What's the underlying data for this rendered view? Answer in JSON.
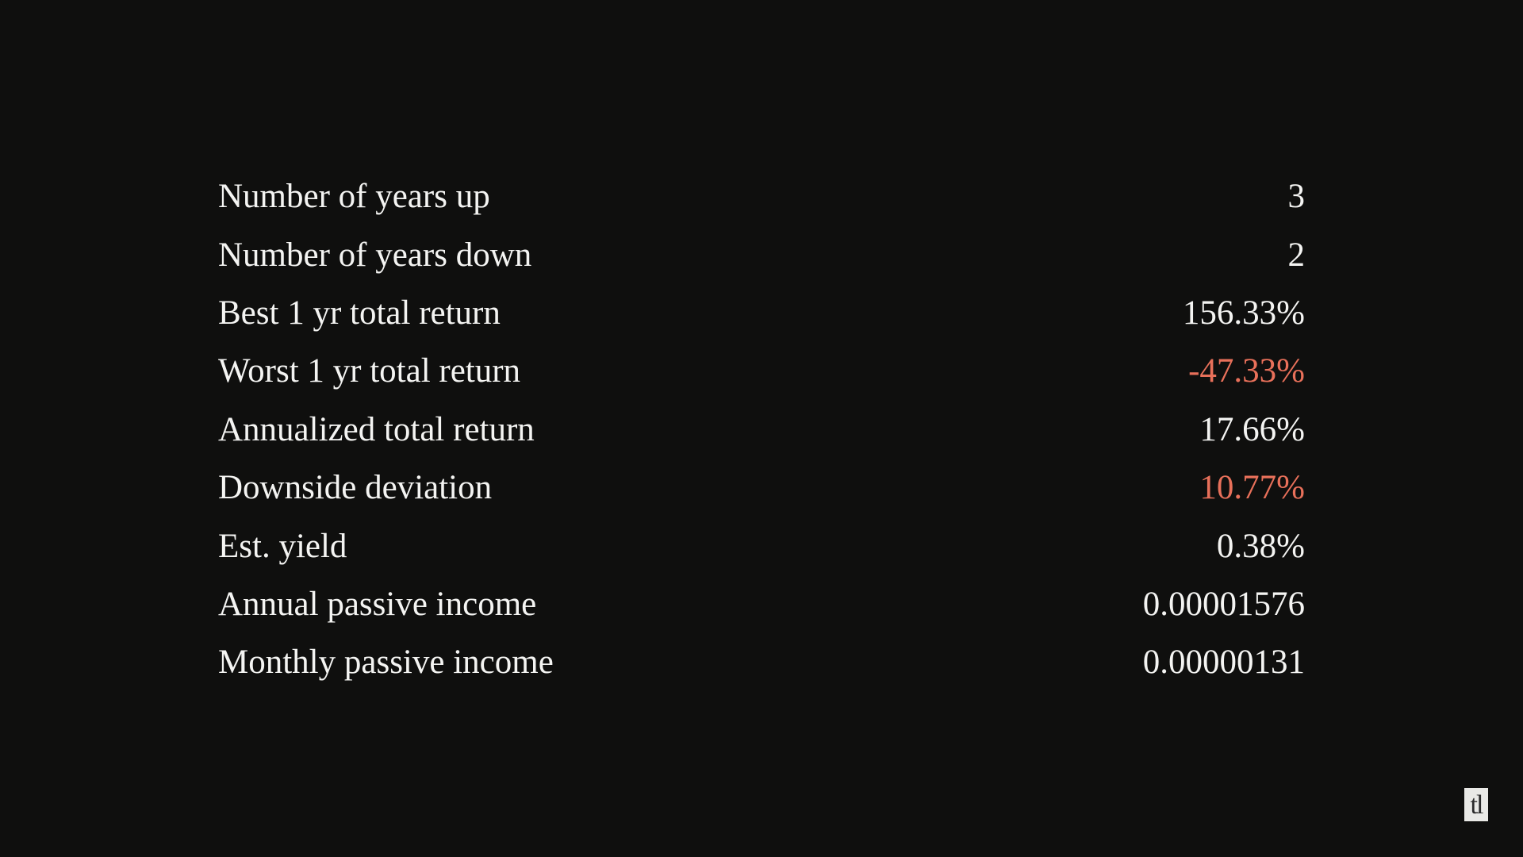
{
  "stats": [
    {
      "label": "Number of years up",
      "value": "3",
      "negative": false
    },
    {
      "label": "Number of years down",
      "value": "2",
      "negative": false
    },
    {
      "label": "Best 1 yr total return",
      "value": "156.33%",
      "negative": false
    },
    {
      "label": "Worst 1 yr total return",
      "value": "-47.33%",
      "negative": true
    },
    {
      "label": "Annualized total return",
      "value": "17.66%",
      "negative": false
    },
    {
      "label": "Downside deviation",
      "value": "10.77%",
      "negative": true
    },
    {
      "label": "Est. yield",
      "value": "0.38%",
      "negative": false
    },
    {
      "label": "Annual passive income",
      "value": "0.00001576",
      "negative": false
    },
    {
      "label": "Monthly passive income",
      "value": "0.00000131",
      "negative": false
    }
  ],
  "colors": {
    "background": "#0f0f0e",
    "text": "#f4f4f2",
    "negative": "#e8705a"
  },
  "logo": {
    "text": "tl"
  }
}
